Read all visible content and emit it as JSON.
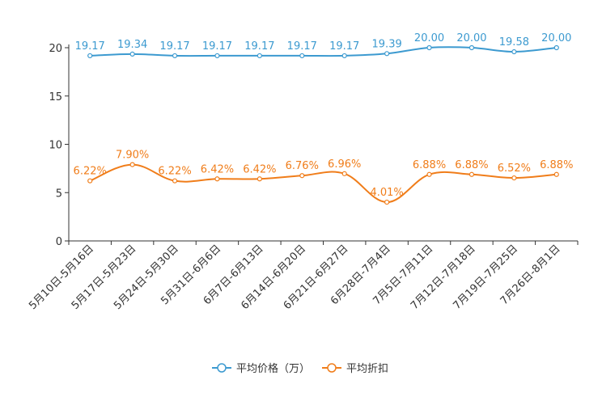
{
  "chart_data": {
    "type": "line",
    "title": "",
    "xlabel": "",
    "ylabel": "",
    "ylim": [
      0,
      20
    ],
    "yticks": [
      "0",
      "5",
      "10",
      "15",
      "20"
    ],
    "categories": [
      "5月10日-5月16日",
      "5月17日-5月23日",
      "5月24日-5月30日",
      "5月31日-6月6日",
      "6月7日-6月13日",
      "6月14日-6月20日",
      "6月21日-6月27日",
      "6月28日-7月4日",
      "7月5日-7月11日",
      "7月12日-7月18日",
      "7月19日-7月25日",
      "7月26日-8月1日"
    ],
    "series": [
      {
        "name": "平均价格（万）",
        "color": "#3c9ad0",
        "values": [
          19.17,
          19.34,
          19.17,
          19.17,
          19.17,
          19.17,
          19.17,
          19.39,
          20.0,
          20.0,
          19.58,
          20.0
        ],
        "labels": [
          "19.17",
          "19.34",
          "19.17",
          "19.17",
          "19.17",
          "19.17",
          "19.17",
          "19.39",
          "20.00",
          "20.00",
          "19.58",
          "20.00"
        ]
      },
      {
        "name": "平均折扣",
        "color": "#f07d1a",
        "values": [
          6.22,
          7.9,
          6.22,
          6.42,
          6.42,
          6.76,
          6.96,
          4.01,
          6.88,
          6.88,
          6.52,
          6.88
        ],
        "labels": [
          "6.22%",
          "7.90%",
          "6.22%",
          "6.42%",
          "6.42%",
          "6.76%",
          "6.96%",
          "4.01%",
          "6.88%",
          "6.88%",
          "6.52%",
          "6.88%"
        ]
      }
    ],
    "legend_position": "bottom"
  }
}
